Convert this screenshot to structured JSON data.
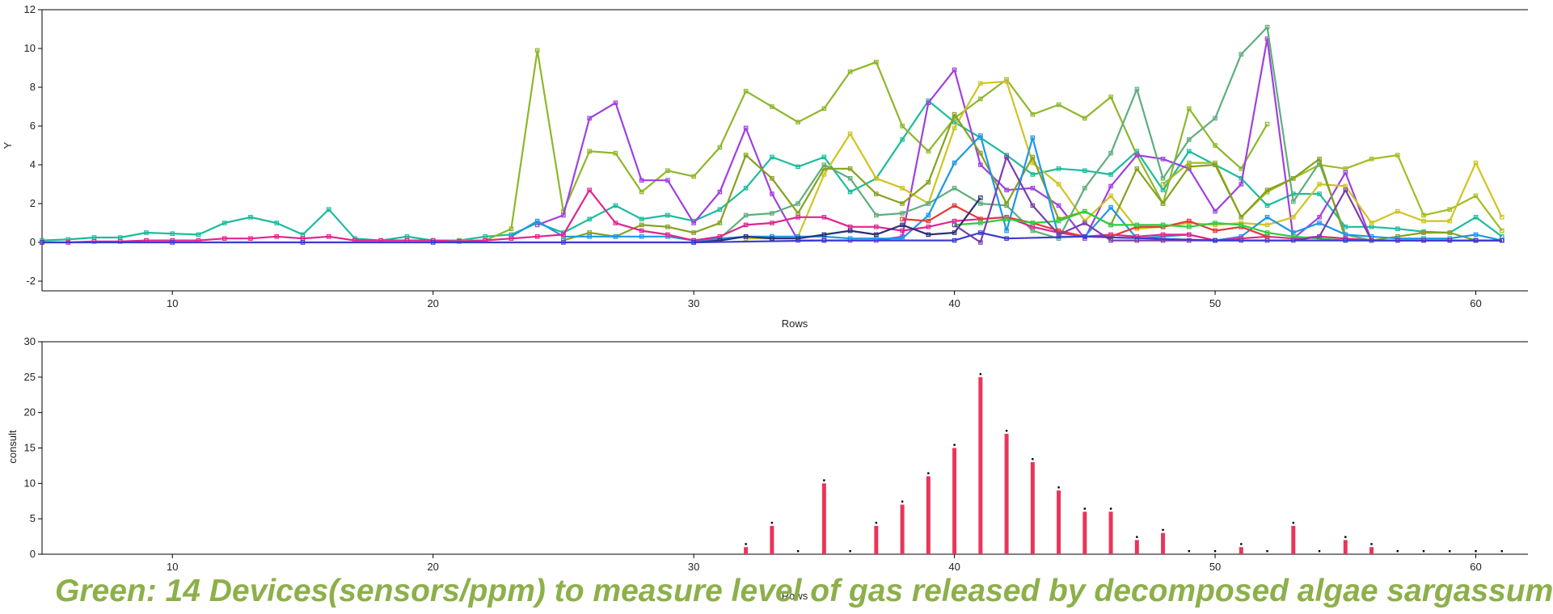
{
  "caption": "Green:  14 Devices(sensors/ppm) to measure level of gas released by decomposed algae sargassum",
  "chart_data": [
    {
      "type": "line",
      "xlabel": "Rows",
      "ylabel": "Y",
      "xlim": [
        5,
        62
      ],
      "ylim": [
        -2,
        12
      ],
      "xticks": [
        10,
        20,
        30,
        40,
        50,
        60
      ],
      "yticks": [
        -2,
        0,
        2,
        4,
        6,
        8,
        10,
        12
      ],
      "grid": false,
      "series": [
        {
          "color": "#1abc9c",
          "x": [
            5,
            6,
            7,
            8,
            9,
            10,
            11,
            12,
            13,
            14,
            15,
            16,
            17,
            18,
            19,
            20,
            21,
            22,
            23,
            24,
            25,
            26,
            27,
            28,
            29,
            30,
            31,
            32,
            33,
            34,
            35,
            36,
            37,
            38,
            39,
            40,
            41,
            42,
            43,
            44,
            45,
            46,
            47,
            48,
            49,
            50,
            51,
            52,
            53,
            54,
            55,
            56,
            57,
            58,
            59,
            60,
            61
          ],
          "y": [
            0.1,
            0.15,
            0.25,
            0.25,
            0.5,
            0.45,
            0.4,
            1.0,
            1.3,
            1.0,
            0.4,
            1.7,
            0.2,
            0.1,
            0.3,
            0.1,
            0.1,
            0.3,
            0.4,
            1.0,
            0.5,
            1.2,
            1.9,
            1.2,
            1.4,
            1.1,
            1.7,
            2.8,
            4.4,
            3.9,
            4.4,
            2.6,
            3.3,
            5.3,
            7.3,
            6.2,
            5.4,
            4.5,
            3.5,
            3.8,
            3.7,
            3.5,
            4.7,
            2.7,
            4.7,
            4.0,
            3.3,
            1.9,
            2.5,
            2.5,
            0.8,
            0.8,
            0.7,
            0.55,
            0.5,
            1.3,
            0.3
          ]
        },
        {
          "color": "#8db72a",
          "x": [
            21,
            22,
            23,
            24,
            25,
            26,
            27,
            28,
            29,
            30,
            31,
            32,
            33,
            34,
            35,
            36,
            37,
            38,
            39,
            40,
            41,
            42,
            43,
            44,
            45,
            46,
            47,
            48,
            49,
            50,
            51,
            52
          ],
          "y": [
            0.1,
            0.1,
            0.7,
            9.9,
            1.6,
            4.7,
            4.6,
            2.6,
            3.7,
            3.4,
            4.9,
            7.8,
            7.0,
            6.2,
            6.9,
            8.8,
            9.3,
            6.0,
            4.7,
            6.4,
            7.4,
            8.4,
            6.6,
            7.1,
            6.4,
            7.5,
            4.5,
            2.0,
            6.9,
            5.0,
            3.8,
            6.1
          ]
        },
        {
          "color": "#a0bd22",
          "x": [
            48,
            49,
            50,
            51,
            52,
            53,
            54,
            55,
            56,
            57,
            58,
            59,
            60,
            61
          ],
          "y": [
            3.0,
            4.1,
            4.1,
            1.3,
            2.6,
            3.3,
            4.0,
            3.8,
            4.3,
            4.5,
            1.4,
            1.7,
            2.4,
            0.6
          ]
        },
        {
          "color": "#a040e0",
          "x": [
            24,
            25,
            26,
            27,
            28,
            29,
            30,
            31,
            32,
            33,
            34,
            35,
            36,
            37,
            38,
            39,
            40,
            41,
            42,
            43,
            44,
            45,
            46,
            47,
            48,
            49,
            50,
            51,
            52,
            53,
            54,
            55,
            56,
            57,
            58,
            59,
            60,
            61
          ],
          "y": [
            0.9,
            1.4,
            6.4,
            7.2,
            3.2,
            3.2,
            1.0,
            2.6,
            5.9,
            2.5,
            0.1,
            0.1,
            0.1,
            0.1,
            0.3,
            7.2,
            8.9,
            4.0,
            2.7,
            2.8,
            1.9,
            0.2,
            2.9,
            4.5,
            4.3,
            3.8,
            1.6,
            3.0,
            10.5,
            0.2,
            1.3,
            3.6,
            0.1,
            0.1,
            0.1,
            0.1,
            0.1,
            0.1
          ]
        },
        {
          "color": "#cfc421",
          "x": [
            32,
            33,
            34,
            35,
            36,
            37,
            38,
            39,
            40,
            41,
            42,
            43,
            44,
            45,
            46,
            47,
            48,
            49,
            50,
            51,
            52,
            53,
            54,
            55,
            56,
            57,
            58,
            59,
            60,
            61
          ],
          "y": [
            0.2,
            0.2,
            0.3,
            3.5,
            5.6,
            3.3,
            2.8,
            2.0,
            5.9,
            8.2,
            8.3,
            4.1,
            3.0,
            1.1,
            2.4,
            0.7,
            0.8,
            1.0,
            0.9,
            1.0,
            0.9,
            1.3,
            3.0,
            2.9,
            1.0,
            1.6,
            1.1,
            1.1,
            4.1,
            1.3
          ]
        },
        {
          "color": "#5fae7d",
          "x": [
            30,
            31,
            32,
            33,
            34,
            35,
            36,
            37,
            38,
            39,
            40,
            41,
            42,
            43,
            44,
            45,
            46,
            47,
            48,
            49,
            50,
            51,
            52,
            53,
            54,
            55,
            56,
            57,
            58,
            59,
            60,
            61
          ],
          "y": [
            0.1,
            0.2,
            1.4,
            1.5,
            2.0,
            4.0,
            3.3,
            1.4,
            1.5,
            2.0,
            2.8,
            2.0,
            1.9,
            0.6,
            0.2,
            2.8,
            4.6,
            7.9,
            3.3,
            5.3,
            6.4,
            9.7,
            11.1,
            2.1,
            4.1,
            0.4,
            0.1,
            0.1,
            0.1,
            0.1,
            0.1,
            0.1
          ]
        },
        {
          "color": "#86a11f",
          "x": [
            25,
            26,
            27,
            28,
            29,
            30,
            31,
            32,
            33,
            34,
            35,
            36,
            37,
            38,
            39,
            40,
            41,
            42,
            43,
            44,
            45,
            46,
            47,
            48,
            49,
            50,
            51,
            52,
            53,
            54,
            55,
            56,
            57,
            58,
            59,
            60,
            61
          ],
          "y": [
            0.1,
            0.5,
            0.3,
            0.9,
            0.8,
            0.5,
            1.0,
            4.5,
            3.3,
            1.5,
            3.8,
            3.8,
            2.5,
            2.0,
            3.1,
            6.6,
            4.6,
            2.0,
            4.4,
            1.2,
            1.6,
            0.9,
            3.8,
            2.0,
            3.9,
            4.0,
            1.3,
            2.7,
            3.3,
            4.3,
            0.2,
            0.1,
            0.3,
            0.5,
            0.5,
            0.1,
            0.1
          ]
        },
        {
          "color": "#1e96e6",
          "x": [
            23,
            24,
            25,
            26,
            27,
            28,
            29,
            30,
            31,
            32,
            33,
            34,
            35,
            36,
            37,
            38,
            39,
            40,
            41,
            42,
            43,
            44,
            45,
            46,
            47,
            48,
            49,
            50,
            51,
            52,
            53,
            54,
            55,
            56,
            57,
            58,
            59,
            60,
            61
          ],
          "y": [
            0.3,
            1.1,
            0.3,
            0.3,
            0.3,
            0.3,
            0.3,
            0.1,
            0.2,
            0.3,
            0.3,
            0.3,
            0.3,
            0.2,
            0.2,
            0.2,
            1.4,
            4.1,
            5.5,
            0.6,
            5.4,
            0.3,
            0.3,
            1.8,
            0.2,
            0.3,
            0.4,
            0.1,
            0.3,
            1.3,
            0.5,
            1.0,
            0.4,
            0.3,
            0.2,
            0.2,
            0.2,
            0.4,
            0.1
          ]
        },
        {
          "color": "#e0258f",
          "x": [
            5,
            6,
            7,
            8,
            9,
            10,
            11,
            12,
            13,
            14,
            15,
            16,
            17,
            18,
            19,
            20,
            21,
            22,
            23,
            24,
            25,
            26,
            27,
            28,
            29,
            30,
            31,
            32,
            33,
            34,
            35,
            36,
            37,
            38,
            39,
            40,
            41,
            42,
            43,
            44,
            45,
            46,
            47,
            48,
            49,
            50,
            51,
            52,
            53,
            54,
            55,
            56,
            57,
            58,
            59,
            60,
            61
          ],
          "y": [
            0,
            0,
            0.05,
            0.05,
            0.1,
            0.1,
            0.1,
            0.2,
            0.2,
            0.3,
            0.2,
            0.3,
            0.1,
            0.1,
            0.1,
            0.1,
            0.05,
            0.1,
            0.2,
            0.3,
            0.4,
            2.7,
            1.0,
            0.6,
            0.4,
            0.1,
            0.3,
            0.9,
            1.0,
            1.3,
            1.3,
            0.8,
            0.8,
            0.6,
            0.8,
            1.1,
            1.2,
            1.3,
            0.8,
            0.5,
            0.3,
            0.4,
            0.3,
            0.4,
            0.4,
            0.1,
            0.2,
            0.3,
            0.2,
            0.3,
            0.2,
            0.1,
            0.1,
            0.1,
            0.1,
            0.1,
            0.1
          ]
        },
        {
          "color": "#e53935",
          "x": [
            38,
            39,
            40,
            41,
            42,
            43,
            44,
            45,
            46,
            47,
            48,
            49,
            50,
            51,
            52
          ],
          "y": [
            1.2,
            1.1,
            1.9,
            1.2,
            1.3,
            1.0,
            0.6,
            0.3,
            0.3,
            0.8,
            0.8,
            1.1,
            0.6,
            0.8,
            0.3
          ]
        },
        {
          "color": "#2ecc40",
          "x": [
            40,
            41,
            42,
            43,
            44,
            45,
            46,
            47,
            48,
            49,
            50,
            51,
            52,
            53,
            54,
            55,
            56
          ],
          "y": [
            0.9,
            1.0,
            1.2,
            1.0,
            1.1,
            1.6,
            0.9,
            0.9,
            0.9,
            0.8,
            1.0,
            0.9,
            0.5,
            0.3,
            0.2,
            0.1,
            0.1
          ]
        },
        {
          "color": "#2b2f7a",
          "x": [
            30,
            31,
            32,
            33,
            34,
            35,
            36,
            37,
            38,
            39,
            40,
            41
          ],
          "y": [
            0.0,
            0.1,
            0.3,
            0.2,
            0.2,
            0.4,
            0.6,
            0.4,
            0.9,
            0.4,
            0.5,
            2.3
          ]
        },
        {
          "color": "#7a3fa8",
          "x": [
            40,
            41,
            42,
            43,
            44,
            45,
            46,
            47,
            48,
            49,
            50,
            51,
            52,
            53,
            54,
            55,
            56,
            57,
            58,
            59,
            60,
            61
          ],
          "y": [
            0.9,
            0.0,
            4.4,
            1.9,
            0.4,
            1.0,
            0.1,
            0.1,
            0.1,
            0.1,
            0.1,
            0.1,
            0.1,
            0.1,
            0.3,
            2.7,
            0.1,
            0.1,
            0.1,
            0.1,
            0.1,
            0.1
          ]
        },
        {
          "color": "#3b3bd0",
          "x": [
            5,
            10,
            15,
            20,
            25,
            30,
            35,
            40,
            41,
            42,
            45,
            50,
            55,
            60,
            61
          ],
          "y": [
            0,
            0,
            0,
            0,
            0,
            0,
            0.1,
            0.1,
            0.5,
            0.2,
            0.3,
            0.1,
            0.1,
            0.1,
            0.1
          ]
        }
      ]
    },
    {
      "type": "bar",
      "xlabel": "Rows",
      "ylabel": "consult",
      "xlim": [
        5,
        62
      ],
      "ylim": [
        0,
        30
      ],
      "xticks": [
        10,
        20,
        30,
        40,
        50,
        60
      ],
      "yticks": [
        0,
        5,
        10,
        15,
        20,
        25,
        30
      ],
      "grid": false,
      "color": "#e8365a",
      "x": [
        32,
        33,
        34,
        35,
        36,
        37,
        38,
        39,
        40,
        41,
        42,
        43,
        44,
        45,
        46,
        47,
        48,
        49,
        50,
        51,
        52,
        53,
        54,
        55,
        56,
        57,
        58,
        59,
        60,
        61
      ],
      "values": [
        1,
        4,
        0,
        10,
        0,
        4,
        7,
        11,
        15,
        25,
        17,
        13,
        9,
        6,
        6,
        2,
        3,
        0,
        0,
        1,
        0,
        4,
        0,
        2,
        1,
        0,
        0,
        0,
        0,
        0
      ]
    }
  ]
}
